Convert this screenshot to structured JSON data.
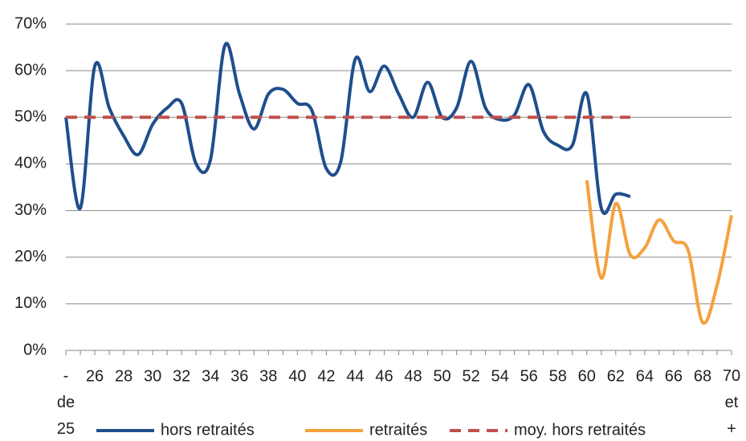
{
  "chart_data": {
    "type": "line",
    "categories": [
      "- de 25",
      null,
      "26",
      null,
      "28",
      null,
      "30",
      null,
      "32",
      null,
      "34",
      null,
      "36",
      null,
      "38",
      null,
      "40",
      null,
      "42",
      null,
      "44",
      null,
      "46",
      null,
      "48",
      null,
      "50",
      null,
      "52",
      null,
      "54",
      null,
      "56",
      null,
      "58",
      null,
      "60",
      null,
      "62",
      null,
      "64",
      null,
      "66",
      null,
      "68",
      null,
      "70 et +"
    ],
    "series": [
      {
        "name": "hors retraités",
        "color": "#1f4e8c",
        "style": "solid",
        "smooth": true,
        "values": [
          50,
          30.5,
          61,
          52,
          46,
          42,
          48.5,
          52,
          53,
          40,
          41,
          65.5,
          55,
          47.5,
          55,
          56,
          53,
          51.5,
          39,
          40.5,
          62.5,
          55.5,
          61,
          55,
          50,
          57.5,
          50,
          52,
          62,
          52,
          49.5,
          50.5,
          57,
          47,
          44,
          44,
          55,
          30.5,
          33.5,
          33,
          null,
          null,
          null,
          null,
          null,
          null,
          null
        ]
      },
      {
        "name": "retraités",
        "color": "#f4a13e",
        "style": "solid",
        "smooth": true,
        "values": [
          null,
          null,
          null,
          null,
          null,
          null,
          null,
          null,
          null,
          null,
          null,
          null,
          null,
          null,
          null,
          null,
          null,
          null,
          null,
          null,
          null,
          null,
          null,
          null,
          null,
          null,
          null,
          null,
          null,
          null,
          null,
          null,
          null,
          null,
          null,
          null,
          36.5,
          15.5,
          31.5,
          20.5,
          22,
          28,
          23.5,
          21.5,
          6,
          14,
          29
        ]
      },
      {
        "name": "moy. hors retraités",
        "color": "#c0504d",
        "style": "dashed",
        "smooth": false,
        "values": [
          50,
          50,
          50,
          50,
          50,
          50,
          50,
          50,
          50,
          50,
          50,
          50,
          50,
          50,
          50,
          50,
          50,
          50,
          50,
          50,
          50,
          50,
          50,
          50,
          50,
          50,
          50,
          50,
          50,
          50,
          50,
          50,
          50,
          50,
          50,
          50,
          50,
          50,
          50,
          50,
          null,
          null,
          null,
          null,
          null,
          null,
          null
        ]
      }
    ],
    "ylim": [
      0,
      70
    ],
    "yticks": [
      {
        "value": 0,
        "label": "0%"
      },
      {
        "value": 10,
        "label": "10%"
      },
      {
        "value": 20,
        "label": "20%"
      },
      {
        "value": 30,
        "label": "30%"
      },
      {
        "value": 40,
        "label": "40%"
      },
      {
        "value": 50,
        "label": "50%"
      },
      {
        "value": 60,
        "label": "60%"
      },
      {
        "value": 70,
        "label": "70%"
      }
    ],
    "grid": true,
    "legend": "bottom"
  }
}
